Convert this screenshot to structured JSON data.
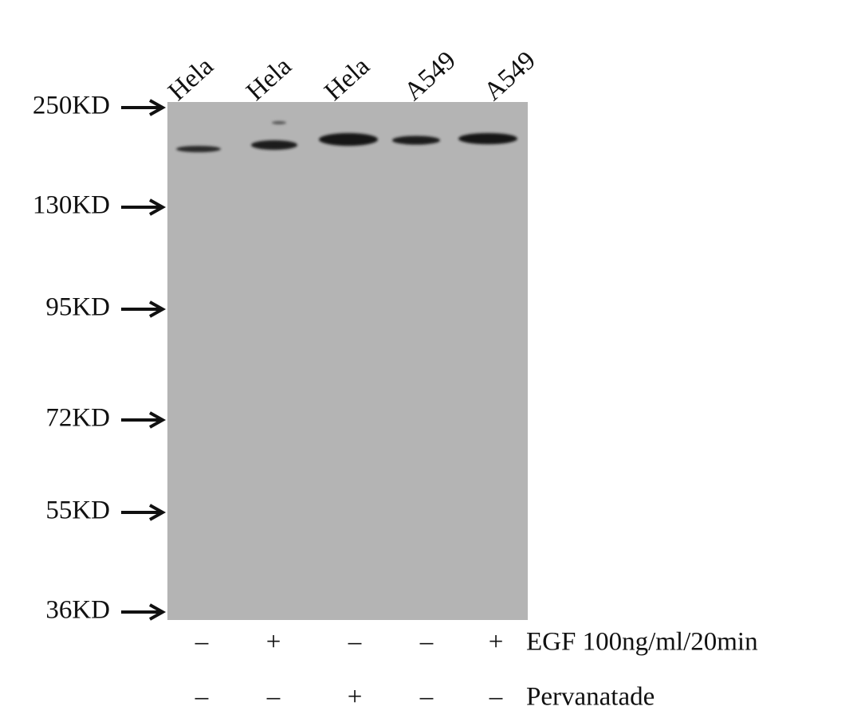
{
  "lanes": [
    "Hela",
    "Hela",
    "Hela",
    "A549",
    "A549"
  ],
  "markers": [
    "250KD",
    "130KD",
    "95KD",
    "72KD",
    "55KD",
    "36KD"
  ],
  "treatments": [
    {
      "label": "EGF 100ng/ml/20min",
      "signs": [
        "–",
        "+",
        "–",
        "–",
        "+"
      ]
    },
    {
      "label": "Pervanatade",
      "signs": [
        "–",
        "–",
        "+",
        "–",
        "–"
      ]
    }
  ]
}
